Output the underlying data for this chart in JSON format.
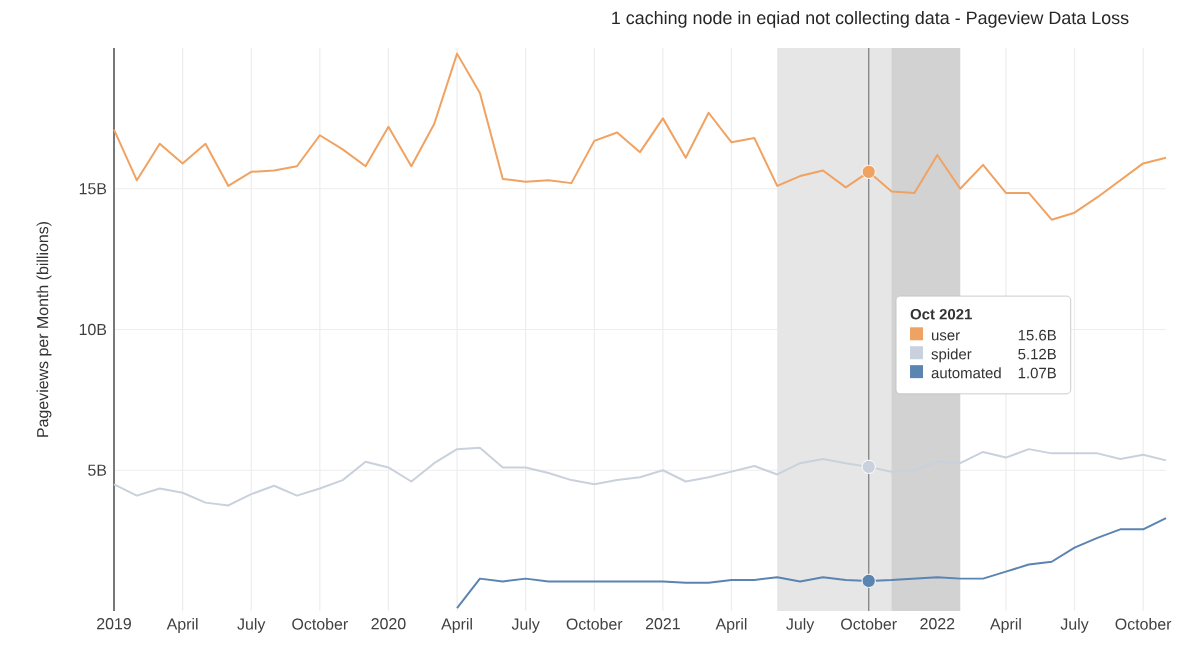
{
  "chart_data": {
    "type": "line",
    "title": "1 caching node in eqiad not collecting data - Pageview Data Loss",
    "ylabel": "Pageviews per Month (billions)",
    "x": [
      "2019-01",
      "2019-02",
      "2019-03",
      "2019-04",
      "2019-05",
      "2019-06",
      "2019-07",
      "2019-08",
      "2019-09",
      "2019-10",
      "2019-11",
      "2019-12",
      "2020-01",
      "2020-02",
      "2020-03",
      "2020-04",
      "2020-05",
      "2020-06",
      "2020-07",
      "2020-08",
      "2020-09",
      "2020-10",
      "2020-11",
      "2020-12",
      "2021-01",
      "2021-02",
      "2021-03",
      "2021-04",
      "2021-05",
      "2021-06",
      "2021-07",
      "2021-08",
      "2021-09",
      "2021-10",
      "2021-11",
      "2021-12",
      "2022-01",
      "2022-02",
      "2022-03",
      "2022-04",
      "2022-05",
      "2022-06",
      "2022-07",
      "2022-08",
      "2022-09",
      "2022-10",
      "2022-11"
    ],
    "series": [
      {
        "name": "user",
        "color": "#f0a262",
        "values": [
          17.1,
          15.3,
          16.6,
          15.9,
          16.6,
          15.1,
          15.6,
          15.65,
          15.8,
          16.9,
          16.4,
          15.8,
          17.2,
          15.8,
          17.3,
          19.8,
          18.4,
          15.35,
          15.25,
          15.3,
          15.2,
          16.7,
          17.0,
          16.3,
          17.5,
          16.1,
          17.7,
          16.65,
          16.8,
          15.1,
          15.45,
          15.65,
          15.05,
          15.6,
          14.9,
          14.85,
          16.2,
          15.0,
          15.85,
          14.85,
          14.85,
          13.9,
          14.15,
          14.7,
          15.3,
          15.9,
          16.1
        ]
      },
      {
        "name": "spider",
        "color": "#c9d1dc",
        "values": [
          4.5,
          4.1,
          4.35,
          4.2,
          3.85,
          3.75,
          4.15,
          4.45,
          4.1,
          4.35,
          4.65,
          5.3,
          5.1,
          4.6,
          5.25,
          5.75,
          5.8,
          5.1,
          5.1,
          4.9,
          4.65,
          4.5,
          4.65,
          4.75,
          5.0,
          4.6,
          4.75,
          4.95,
          5.15,
          4.85,
          5.25,
          5.4,
          5.25,
          5.12,
          4.95,
          5.0,
          5.3,
          5.25,
          5.65,
          5.45,
          5.75,
          5.6,
          5.6,
          5.6,
          5.4,
          5.55,
          5.35
        ]
      },
      {
        "name": "automated",
        "color": "#5b84b1",
        "values": [
          null,
          null,
          null,
          null,
          null,
          null,
          null,
          null,
          null,
          null,
          null,
          null,
          null,
          null,
          null,
          0.1,
          1.15,
          1.05,
          1.15,
          1.05,
          1.05,
          1.05,
          1.05,
          1.05,
          1.05,
          1.0,
          1.0,
          1.1,
          1.1,
          1.2,
          1.05,
          1.2,
          1.1,
          1.07,
          1.1,
          1.15,
          1.2,
          1.15,
          1.15,
          1.4,
          1.65,
          1.75,
          2.25,
          2.6,
          2.9,
          2.9,
          3.3
        ]
      }
    ],
    "xlim": [
      "2019-01",
      "2022-11"
    ],
    "xticks": [
      {
        "value": "2019-01",
        "label": "2019"
      },
      {
        "value": "2019-04",
        "label": "April"
      },
      {
        "value": "2019-07",
        "label": "July"
      },
      {
        "value": "2019-10",
        "label": "October"
      },
      {
        "value": "2020-01",
        "label": "2020"
      },
      {
        "value": "2020-04",
        "label": "April"
      },
      {
        "value": "2020-07",
        "label": "July"
      },
      {
        "value": "2020-10",
        "label": "October"
      },
      {
        "value": "2021-01",
        "label": "2021"
      },
      {
        "value": "2021-04",
        "label": "April"
      },
      {
        "value": "2021-07",
        "label": "July"
      },
      {
        "value": "2021-10",
        "label": "October"
      },
      {
        "value": "2022-01",
        "label": "2022"
      },
      {
        "value": "2022-04",
        "label": "April"
      },
      {
        "value": "2022-07",
        "label": "July"
      },
      {
        "value": "2022-10",
        "label": "October"
      }
    ],
    "ylim": [
      0,
      20
    ],
    "yticks": [
      {
        "value": 5,
        "label": "5B"
      },
      {
        "value": 10,
        "label": "10B"
      },
      {
        "value": 15,
        "label": "15B"
      }
    ],
    "bands": [
      {
        "axis": "x",
        "from": "2021-06",
        "to": "2022-02",
        "color": "#e6e6e6"
      },
      {
        "axis": "x",
        "from": "2021-11",
        "to": "2022-02",
        "color": "#d2d2d2"
      }
    ],
    "ref_lines": [
      {
        "axis": "x",
        "value": "2021-10",
        "color": "#8a8a8a"
      }
    ],
    "legend_title": "Oct 2021",
    "annotations": [
      "15.6B",
      "5.12B",
      "1.07B"
    ],
    "legend": "right",
    "grid": true,
    "marker": "none",
    "line_style": "solid"
  }
}
